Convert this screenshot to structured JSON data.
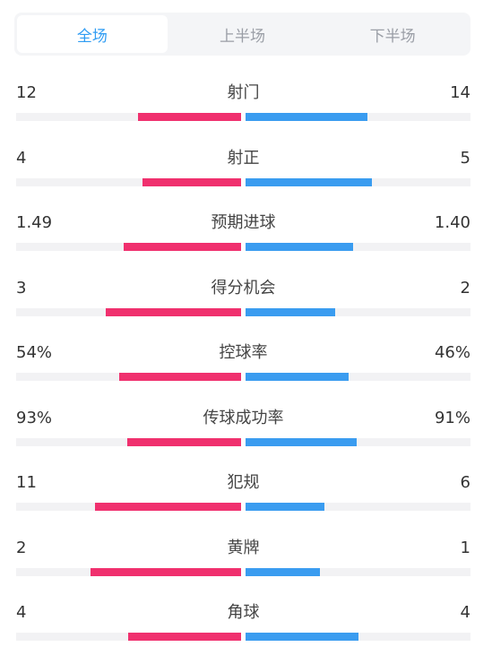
{
  "tabs": [
    {
      "label": "全场",
      "active": true
    },
    {
      "label": "上半场",
      "active": false
    },
    {
      "label": "下半场",
      "active": false
    }
  ],
  "colors": {
    "home": "#f0306e",
    "away": "#3a9cf0",
    "active_tab": "#2f9cf3"
  },
  "stats": [
    {
      "label": "射门",
      "home": "12",
      "away": "14",
      "home_share": 0.46,
      "away_share": 0.54
    },
    {
      "label": "射正",
      "home": "4",
      "away": "5",
      "home_share": 0.44,
      "away_share": 0.56
    },
    {
      "label": "预期进球",
      "home": "1.49",
      "away": "1.40",
      "home_share": 0.52,
      "away_share": 0.48
    },
    {
      "label": "得分机会",
      "home": "3",
      "away": "2",
      "home_share": 0.6,
      "away_share": 0.4
    },
    {
      "label": "控球率",
      "home": "54%",
      "away": "46%",
      "home_share": 0.54,
      "away_share": 0.46
    },
    {
      "label": "传球成功率",
      "home": "93%",
      "away": "91%",
      "home_share": 0.505,
      "away_share": 0.495
    },
    {
      "label": "犯规",
      "home": "11",
      "away": "6",
      "home_share": 0.65,
      "away_share": 0.35
    },
    {
      "label": "黄牌",
      "home": "2",
      "away": "1",
      "home_share": 0.67,
      "away_share": 0.33
    },
    {
      "label": "角球",
      "home": "4",
      "away": "4",
      "home_share": 0.5,
      "away_share": 0.5
    }
  ]
}
